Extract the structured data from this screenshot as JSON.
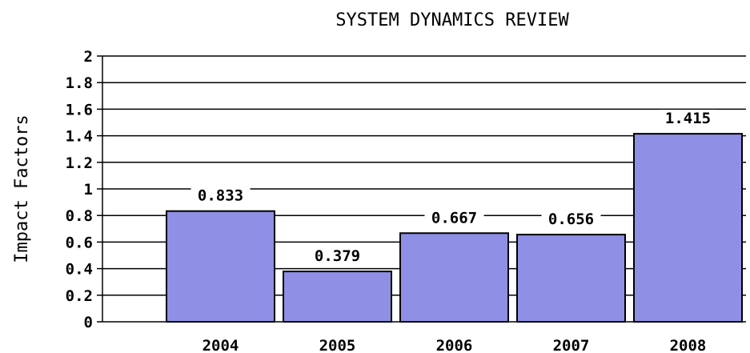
{
  "chart_data": {
    "type": "bar",
    "title": "SYSTEM DYNAMICS REVIEW",
    "xlabel": "",
    "ylabel": "Impact Factors",
    "categories": [
      "2004",
      "2005",
      "2006",
      "2007",
      "2008"
    ],
    "values": [
      0.833,
      0.379,
      0.667,
      0.656,
      1.415
    ],
    "data_labels": [
      "0.833",
      "0.379",
      "0.667",
      "0.656",
      "1.415"
    ],
    "ylim": [
      0,
      2
    ],
    "yticks": [
      0,
      0.2,
      0.4,
      0.6,
      0.8,
      1,
      1.2,
      1.4,
      1.6,
      1.8,
      2
    ],
    "ytick_labels": [
      "0",
      "0.2",
      "0.4",
      "0.6",
      "0.8",
      "1",
      "1.2",
      "1.4",
      "1.6",
      "1.8",
      "2"
    ],
    "grid": true,
    "legend": "none",
    "colors": {
      "bar_fill": "#8f8fe6",
      "bar_stroke": "#000000",
      "grid": "#000000",
      "text": "#000000"
    }
  }
}
